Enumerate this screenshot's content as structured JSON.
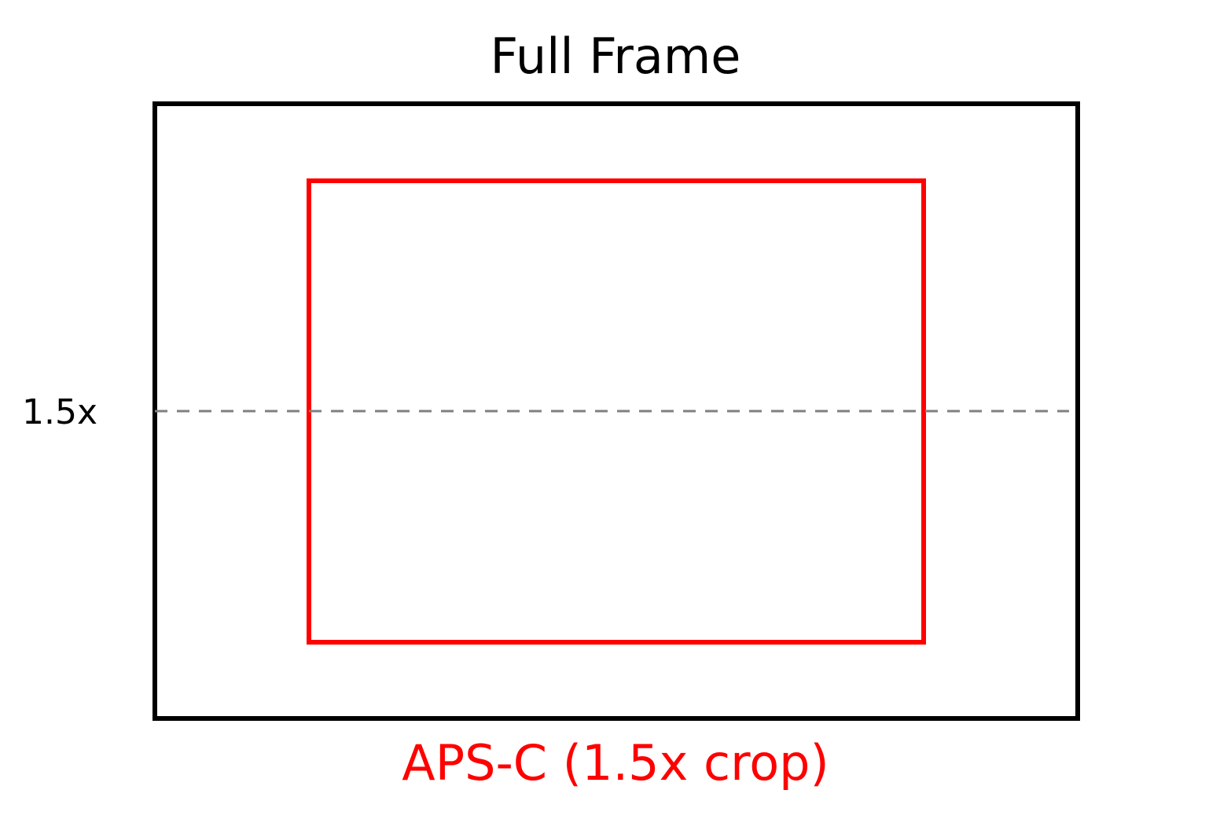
{
  "diagram": {
    "title": "Full Frame",
    "crop_label": "1.5x",
    "caption": "APS-C (1.5x crop)",
    "crop_factor": 1.5,
    "frames": [
      {
        "name": "Full Frame",
        "color": "#000000"
      },
      {
        "name": "APS-C",
        "color": "#ff0000"
      }
    ],
    "guide_color": "#808080"
  }
}
